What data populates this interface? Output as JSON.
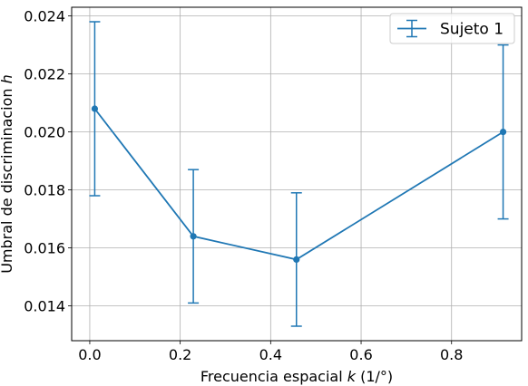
{
  "chart_data": {
    "type": "line",
    "title": "",
    "xlabel": "Frecuencia espacial k (1/°)",
    "xlabel_parts": {
      "prefix": "Frecuencia espacial ",
      "var": "k",
      "suffix": " (1/°)"
    },
    "ylabel": "Umbral de discriminacion h",
    "ylabel_parts": {
      "prefix": "Umbral de discriminacion ",
      "var": "h"
    },
    "xlim": [
      -0.04,
      0.955
    ],
    "ylim": [
      0.0128,
      0.0243
    ],
    "xticks": [
      0.0,
      0.2,
      0.4,
      0.6,
      0.8
    ],
    "xtick_labels": [
      "0.0",
      "0.2",
      "0.4",
      "0.6",
      "0.8"
    ],
    "yticks": [
      0.014,
      0.016,
      0.018,
      0.02,
      0.022,
      0.024
    ],
    "ytick_labels": [
      "0.014",
      "0.016",
      "0.018",
      "0.020",
      "0.022",
      "0.024"
    ],
    "grid": true,
    "legend_position": "top-right",
    "series": [
      {
        "name": "Sujeto 1",
        "color": "#1f77b4",
        "x": [
          0.011,
          0.229,
          0.457,
          0.914
        ],
        "y": [
          0.0208,
          0.0164,
          0.0156,
          0.02
        ],
        "yerr_low": [
          0.0178,
          0.0141,
          0.0133,
          0.017
        ],
        "yerr_high": [
          0.0238,
          0.0187,
          0.0179,
          0.023
        ]
      }
    ]
  }
}
